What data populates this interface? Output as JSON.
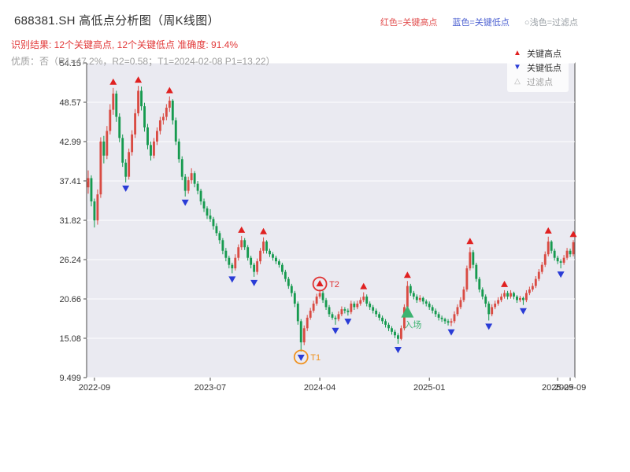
{
  "header": {
    "title": "688381.SH 高低点分析图（周K线图）",
    "legend_high": "红色=关键高点",
    "legend_low": "蓝色=关键低点",
    "legend_filtered": "○浅色=过滤点",
    "result_line": "识别结果: 12个关键高点, 12个关键低点  准确度: 91.4%",
    "quality_line": "优质：否（R1=47.2%，R2=0.58；T1=2024-02-08 P1=13.22）"
  },
  "chart_legend": {
    "high": "关键高点",
    "low": "关键低点",
    "filtered": "过滤点"
  },
  "colors": {
    "header_red": "#e25050",
    "header_blue": "#4f63d2",
    "header_gray": "#9aa0a6",
    "result_red": "#e23b3b",
    "quality_gray": "#9e9e9e",
    "up": "#d94b43",
    "down": "#169a4f",
    "key_high": "#e02020",
    "key_low": "#2a3cd6",
    "panel": "#eaeaf1",
    "grid": "#ffffff",
    "spine": "#4a4a4a",
    "tick_text": "#333333",
    "entry_green": "#3cb371",
    "t1_orange": "#ef9220",
    "t2_red": "#e03131"
  },
  "chart_data": {
    "type": "candlestick",
    "interval": "weekly",
    "symbol": "688381.SH",
    "title": "688381.SH 高低点分析图（周K线图）",
    "ylim": [
      9.499,
      54.15
    ],
    "y_ticks": [
      "54.15",
      "48.57",
      "42.99",
      "37.41",
      "31.82",
      "26.24",
      "20.66",
      "15.08",
      "9.499"
    ],
    "x_ticks": [
      {
        "label": "2022-09",
        "week": 2
      },
      {
        "label": "2023-07",
        "week": 39
      },
      {
        "label": "2024-04",
        "week": 74
      },
      {
        "label": "2025-01",
        "week": 109
      },
      {
        "label": "2025-09",
        "week": 150
      },
      {
        "label": "2025-09",
        "week": 154
      }
    ],
    "candles": [
      [
        36.5,
        38.9,
        35.6,
        37.8
      ],
      [
        37.8,
        38.2,
        33.8,
        34.5
      ],
      [
        34.5,
        34.9,
        30.8,
        31.8
      ],
      [
        31.8,
        36.2,
        31.2,
        35.5
      ],
      [
        35.5,
        43.6,
        35.0,
        43.0
      ],
      [
        43.0,
        43.8,
        39.9,
        41.0
      ],
      [
        41.0,
        45.2,
        40.5,
        44.5
      ],
      [
        44.5,
        48.3,
        44.0,
        47.5
      ],
      [
        47.5,
        50.6,
        46.8,
        49.8
      ],
      [
        49.8,
        50.2,
        45.8,
        46.5
      ],
      [
        46.5,
        47.0,
        42.9,
        43.5
      ],
      [
        43.5,
        44.0,
        39.4,
        40.0
      ],
      [
        40.0,
        40.5,
        37.2,
        38.0
      ],
      [
        38.0,
        42.0,
        37.6,
        41.5
      ],
      [
        41.5,
        44.6,
        41.0,
        44.0
      ],
      [
        44.0,
        47.6,
        43.5,
        47.0
      ],
      [
        47.0,
        50.9,
        46.6,
        50.2
      ],
      [
        50.2,
        50.8,
        47.4,
        48.0
      ],
      [
        48.0,
        48.5,
        44.4,
        45.0
      ],
      [
        45.0,
        45.5,
        41.9,
        42.5
      ],
      [
        42.5,
        43.0,
        40.3,
        41.0
      ],
      [
        41.0,
        43.5,
        40.6,
        43.0
      ],
      [
        43.0,
        45.0,
        42.5,
        44.5
      ],
      [
        44.5,
        46.5,
        44.0,
        46.0
      ],
      [
        46.0,
        47.0,
        45.4,
        46.5
      ],
      [
        46.5,
        48.3,
        46.0,
        47.8
      ],
      [
        47.8,
        49.4,
        47.2,
        48.8
      ],
      [
        48.8,
        49.0,
        45.4,
        46.0
      ],
      [
        46.0,
        46.4,
        42.5,
        43.0
      ],
      [
        43.0,
        43.4,
        40.0,
        40.5
      ],
      [
        40.5,
        40.9,
        37.5,
        38.0
      ],
      [
        38.0,
        38.4,
        35.2,
        36.0
      ],
      [
        36.0,
        38.0,
        35.6,
        37.5
      ],
      [
        37.5,
        39.2,
        37.0,
        38.5
      ],
      [
        38.5,
        38.8,
        36.5,
        37.0
      ],
      [
        37.0,
        37.4,
        35.5,
        36.0
      ],
      [
        36.0,
        36.3,
        34.0,
        34.5
      ],
      [
        34.5,
        34.9,
        33.0,
        33.5
      ],
      [
        33.5,
        33.8,
        32.0,
        32.5
      ],
      [
        32.5,
        33.4,
        31.6,
        32.0
      ],
      [
        32.0,
        32.3,
        30.5,
        31.0
      ],
      [
        31.0,
        31.4,
        29.6,
        30.0
      ],
      [
        30.0,
        30.3,
        28.5,
        29.0
      ],
      [
        29.0,
        29.3,
        27.0,
        27.5
      ],
      [
        27.5,
        27.9,
        26.0,
        26.5
      ],
      [
        26.5,
        26.8,
        25.0,
        25.5
      ],
      [
        25.5,
        25.8,
        24.3,
        25.0
      ],
      [
        25.0,
        27.0,
        24.7,
        26.5
      ],
      [
        26.5,
        28.4,
        26.1,
        28.0
      ],
      [
        28.0,
        29.6,
        27.6,
        29.0
      ],
      [
        29.0,
        29.3,
        27.6,
        28.0
      ],
      [
        28.0,
        28.3,
        26.1,
        26.5
      ],
      [
        26.5,
        26.8,
        25.0,
        25.5
      ],
      [
        25.5,
        25.8,
        23.8,
        24.5
      ],
      [
        24.5,
        26.4,
        24.1,
        26.0
      ],
      [
        26.0,
        27.9,
        25.6,
        27.5
      ],
      [
        27.5,
        29.4,
        27.1,
        28.8
      ],
      [
        28.8,
        29.0,
        27.1,
        27.5
      ],
      [
        27.5,
        27.8,
        26.6,
        27.0
      ],
      [
        27.0,
        27.3,
        26.1,
        26.5
      ],
      [
        26.5,
        26.8,
        25.6,
        26.0
      ],
      [
        26.0,
        26.3,
        25.1,
        25.5
      ],
      [
        25.5,
        25.8,
        24.1,
        24.5
      ],
      [
        24.5,
        24.8,
        23.1,
        23.5
      ],
      [
        23.5,
        23.8,
        22.1,
        22.5
      ],
      [
        22.5,
        22.8,
        21.0,
        21.5
      ],
      [
        21.5,
        21.8,
        19.5,
        20.0
      ],
      [
        20.0,
        20.3,
        17.0,
        17.5
      ],
      [
        17.5,
        17.8,
        13.2,
        14.5
      ],
      [
        14.5,
        16.9,
        14.1,
        16.5
      ],
      [
        16.5,
        18.4,
        16.1,
        18.0
      ],
      [
        18.0,
        19.4,
        17.7,
        19.0
      ],
      [
        19.0,
        20.4,
        18.7,
        20.0
      ],
      [
        20.0,
        21.4,
        19.7,
        21.0
      ],
      [
        21.0,
        22.0,
        20.7,
        21.5
      ],
      [
        21.5,
        21.8,
        20.1,
        20.5
      ],
      [
        20.5,
        20.8,
        19.1,
        19.5
      ],
      [
        19.5,
        19.8,
        18.1,
        18.5
      ],
      [
        18.5,
        18.8,
        17.7,
        18.0
      ],
      [
        18.0,
        18.3,
        17.0,
        17.8
      ],
      [
        17.8,
        18.9,
        17.5,
        18.5
      ],
      [
        18.5,
        19.6,
        18.2,
        19.2
      ],
      [
        19.2,
        19.5,
        18.6,
        19.0
      ],
      [
        19.0,
        19.3,
        18.3,
        18.8
      ],
      [
        18.8,
        20.4,
        18.5,
        20.0
      ],
      [
        20.0,
        20.3,
        19.1,
        19.5
      ],
      [
        19.5,
        20.4,
        19.2,
        20.0
      ],
      [
        20.0,
        20.9,
        19.7,
        20.5
      ],
      [
        20.5,
        21.6,
        20.2,
        21.0
      ],
      [
        21.0,
        21.3,
        19.6,
        20.0
      ],
      [
        20.0,
        20.3,
        19.1,
        19.5
      ],
      [
        19.5,
        19.8,
        18.6,
        19.0
      ],
      [
        19.0,
        19.3,
        18.1,
        18.5
      ],
      [
        18.5,
        18.8,
        17.6,
        18.0
      ],
      [
        18.0,
        18.3,
        17.1,
        17.5
      ],
      [
        17.5,
        17.8,
        16.6,
        17.0
      ],
      [
        17.0,
        17.3,
        16.1,
        16.5
      ],
      [
        16.5,
        16.8,
        15.6,
        16.0
      ],
      [
        16.0,
        16.3,
        15.1,
        15.5
      ],
      [
        15.5,
        15.8,
        14.3,
        15.0
      ],
      [
        15.0,
        16.9,
        14.8,
        16.5
      ],
      [
        16.5,
        19.9,
        16.2,
        19.5
      ],
      [
        19.5,
        23.2,
        19.1,
        22.5
      ],
      [
        22.5,
        22.8,
        21.1,
        21.5
      ],
      [
        21.5,
        21.8,
        20.6,
        21.0
      ],
      [
        21.0,
        21.3,
        20.1,
        20.5
      ],
      [
        20.5,
        21.2,
        20.2,
        20.8
      ],
      [
        20.8,
        21.0,
        19.9,
        20.3
      ],
      [
        20.3,
        20.6,
        19.6,
        20.0
      ],
      [
        20.0,
        20.3,
        19.1,
        19.5
      ],
      [
        19.5,
        19.8,
        18.6,
        19.0
      ],
      [
        19.0,
        19.3,
        18.1,
        18.5
      ],
      [
        18.5,
        18.8,
        17.6,
        18.0
      ],
      [
        18.0,
        18.3,
        17.4,
        17.8
      ],
      [
        17.8,
        18.0,
        17.1,
        17.5
      ],
      [
        17.5,
        17.8,
        16.9,
        17.3
      ],
      [
        17.3,
        17.9,
        16.8,
        17.5
      ],
      [
        17.5,
        18.9,
        17.2,
        18.5
      ],
      [
        18.5,
        19.9,
        18.2,
        19.5
      ],
      [
        19.5,
        20.9,
        19.2,
        20.5
      ],
      [
        20.5,
        22.4,
        20.2,
        22.0
      ],
      [
        22.0,
        25.4,
        21.7,
        25.0
      ],
      [
        25.0,
        28.0,
        24.7,
        27.3
      ],
      [
        27.3,
        27.6,
        25.0,
        25.5
      ],
      [
        25.5,
        25.8,
        23.1,
        23.5
      ],
      [
        23.5,
        23.8,
        21.6,
        22.0
      ],
      [
        22.0,
        22.3,
        20.6,
        21.0
      ],
      [
        21.0,
        21.3,
        19.5,
        20.0
      ],
      [
        20.0,
        20.3,
        17.6,
        18.5
      ],
      [
        18.5,
        19.9,
        18.2,
        19.5
      ],
      [
        19.5,
        20.4,
        19.2,
        20.0
      ],
      [
        20.0,
        20.9,
        19.7,
        20.5
      ],
      [
        20.5,
        21.4,
        20.2,
        21.0
      ],
      [
        21.0,
        21.9,
        20.7,
        21.5
      ],
      [
        21.5,
        21.8,
        20.6,
        21.0
      ],
      [
        21.0,
        21.9,
        20.7,
        21.5
      ],
      [
        21.5,
        21.7,
        20.6,
        21.0
      ],
      [
        21.0,
        21.2,
        20.1,
        20.5
      ],
      [
        20.5,
        21.1,
        20.2,
        20.8
      ],
      [
        20.8,
        21.0,
        19.8,
        20.5
      ],
      [
        20.5,
        21.9,
        20.2,
        21.5
      ],
      [
        21.5,
        22.4,
        21.2,
        22.0
      ],
      [
        22.0,
        22.9,
        21.7,
        22.5
      ],
      [
        22.5,
        23.9,
        22.2,
        23.5
      ],
      [
        23.5,
        24.9,
        23.2,
        24.5
      ],
      [
        24.5,
        25.9,
        24.2,
        25.5
      ],
      [
        25.5,
        27.4,
        25.2,
        27.0
      ],
      [
        27.0,
        29.5,
        26.7,
        28.8
      ],
      [
        28.8,
        29.0,
        27.1,
        27.5
      ],
      [
        27.5,
        27.8,
        26.1,
        26.5
      ],
      [
        26.5,
        26.8,
        25.6,
        26.0
      ],
      [
        26.0,
        26.3,
        25.0,
        25.8
      ],
      [
        25.8,
        26.9,
        25.5,
        26.5
      ],
      [
        26.5,
        27.9,
        26.2,
        27.5
      ],
      [
        27.5,
        27.8,
        26.6,
        27.0
      ],
      [
        27.0,
        29.0,
        26.7,
        28.7
      ]
    ],
    "key_high_weeks": [
      8,
      16,
      26,
      49,
      56,
      74,
      88,
      102,
      122,
      133,
      147,
      155
    ],
    "key_low_weeks": [
      12,
      31,
      46,
      53,
      68,
      79,
      83,
      99,
      116,
      128,
      139,
      151
    ],
    "annotations": [
      {
        "label": "T2",
        "week": 74,
        "type": "circle-high",
        "color": "#e03131"
      },
      {
        "label": "T1",
        "week": 68,
        "type": "circle-low",
        "color": "#ef9220"
      },
      {
        "label": "入场",
        "week": 102,
        "type": "entry",
        "price": 18.8,
        "color": "#3cb371"
      }
    ],
    "stats": {
      "key_high_count": 12,
      "key_low_count": 12,
      "accuracy_pct": 91.4,
      "r1_pct": 47.2,
      "r2": 0.58,
      "t1_date": "2024-02-08",
      "p1": 13.22
    }
  }
}
